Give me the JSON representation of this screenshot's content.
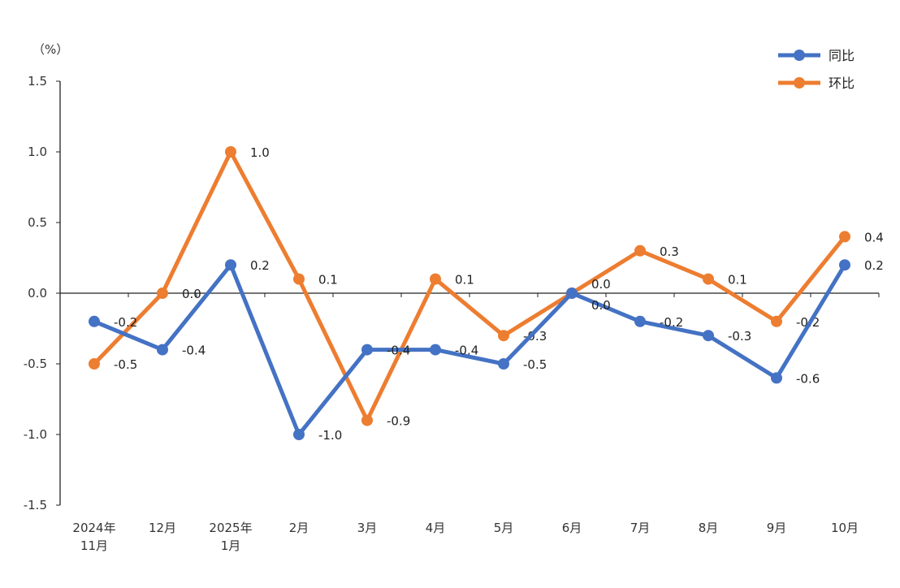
{
  "chart_data": {
    "type": "line",
    "ylabel": "（%）",
    "ylim": [
      -1.5,
      1.5
    ],
    "yticks": [
      "1.5",
      "1.0",
      "0.5",
      "0.0",
      "-0.5",
      "-1.0",
      "-1.5"
    ],
    "ytick_values": [
      1.5,
      1.0,
      0.5,
      0.0,
      -0.5,
      -1.0,
      -1.5
    ],
    "categories": [
      [
        "2024年",
        "11月"
      ],
      [
        "12月"
      ],
      [
        "2025年",
        "1月"
      ],
      [
        "2月"
      ],
      [
        "3月"
      ],
      [
        "4月"
      ],
      [
        "5月"
      ],
      [
        "6月"
      ],
      [
        "7月"
      ],
      [
        "8月"
      ],
      [
        "9月"
      ],
      [
        "10月"
      ]
    ],
    "grid": false,
    "legend_position": "top-right",
    "series": [
      {
        "name": "同比",
        "color": "#4472C4",
        "values": [
          -0.2,
          -0.4,
          0.2,
          -1.0,
          -0.4,
          -0.4,
          -0.5,
          0.0,
          -0.2,
          -0.3,
          -0.6,
          0.2
        ],
        "labels": [
          "-0.2",
          "-0.4",
          "0.2",
          "-1.0",
          "-0.4",
          "-0.4",
          "-0.5",
          "0.0",
          "-0.2",
          "-0.3",
          "-0.6",
          "0.2"
        ]
      },
      {
        "name": "环比",
        "color": "#ED7D31",
        "values": [
          -0.5,
          0.0,
          1.0,
          0.1,
          -0.9,
          0.1,
          -0.3,
          0.0,
          0.3,
          0.1,
          -0.2,
          0.4
        ],
        "labels": [
          "-0.5",
          "0.0",
          "1.0",
          "0.1",
          "-0.9",
          "0.1",
          "-0.3",
          "0.0",
          "0.3",
          "0.1",
          "-0.2",
          "0.4"
        ]
      }
    ]
  }
}
